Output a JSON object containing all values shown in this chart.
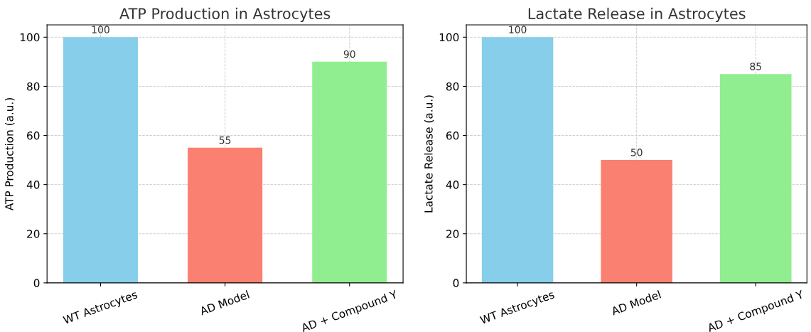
{
  "chart_data": [
    {
      "type": "bar",
      "title": "ATP Production in Astrocytes",
      "ylabel": "ATP Production (a.u.)",
      "categories": [
        "WT Astrocytes",
        "AD Model",
        "AD + Compound Y"
      ],
      "values": [
        100,
        55,
        90
      ],
      "colors": [
        "#87ceeb",
        "#fa8072",
        "#90ee90"
      ],
      "ylim": [
        0,
        105
      ],
      "yticks": [
        0,
        20,
        40,
        60,
        80,
        100
      ],
      "grid": true,
      "data_labels": true
    },
    {
      "type": "bar",
      "title": "Lactate Release in Astrocytes",
      "ylabel": "Lactate Release (a.u.)",
      "categories": [
        "WT Astrocytes",
        "AD Model",
        "AD + Compound Y"
      ],
      "values": [
        100,
        50,
        85
      ],
      "colors": [
        "#87ceeb",
        "#fa8072",
        "#90ee90"
      ],
      "ylim": [
        0,
        105
      ],
      "yticks": [
        0,
        20,
        40,
        60,
        80,
        100
      ],
      "grid": true,
      "data_labels": true
    }
  ]
}
